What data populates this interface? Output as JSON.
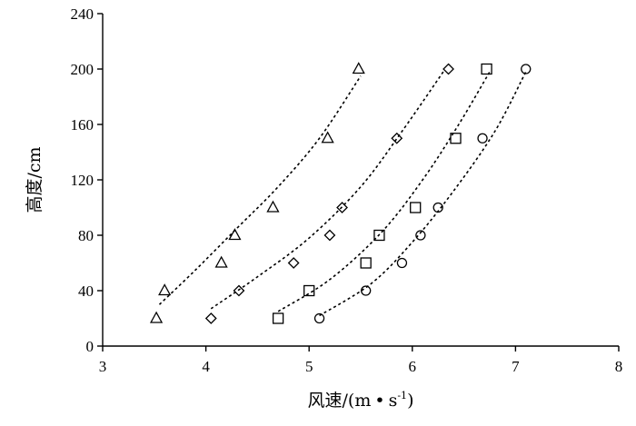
{
  "chart_data": {
    "type": "scatter",
    "xlabel_main": "风速/(m",
    "xlabel_dot": "•",
    "xlabel_s": "s",
    "xlabel_exp": "-1",
    "xlabel_close": ")",
    "ylabel": "高度/cm",
    "xlim": [
      3,
      8
    ],
    "ylim": [
      0,
      240
    ],
    "xticks": [
      3,
      4,
      5,
      6,
      7,
      8
    ],
    "yticks": [
      0,
      40,
      80,
      120,
      160,
      200,
      240
    ],
    "grid": false,
    "series": [
      {
        "marker": "triangle",
        "points": [
          [
            3.52,
            20
          ],
          [
            3.6,
            40
          ],
          [
            4.15,
            60
          ],
          [
            4.28,
            80
          ],
          [
            4.65,
            100
          ],
          [
            5.18,
            150
          ],
          [
            5.48,
            200
          ]
        ]
      },
      {
        "marker": "diamond",
        "points": [
          [
            4.05,
            20
          ],
          [
            4.32,
            40
          ],
          [
            4.85,
            60
          ],
          [
            5.2,
            80
          ],
          [
            5.32,
            100
          ],
          [
            5.85,
            150
          ],
          [
            6.35,
            200
          ]
        ]
      },
      {
        "marker": "square",
        "points": [
          [
            4.7,
            20
          ],
          [
            5.0,
            40
          ],
          [
            5.55,
            60
          ],
          [
            5.68,
            80
          ],
          [
            6.03,
            100
          ],
          [
            6.42,
            150
          ],
          [
            6.72,
            200
          ]
        ]
      },
      {
        "marker": "circle",
        "points": [
          [
            5.1,
            20
          ],
          [
            5.55,
            40
          ],
          [
            5.9,
            60
          ],
          [
            6.08,
            80
          ],
          [
            6.25,
            100
          ],
          [
            6.68,
            150
          ],
          [
            7.1,
            200
          ]
        ]
      }
    ],
    "trendlines": [
      [
        [
          3.55,
          30
        ],
        [
          3.9,
          55
        ],
        [
          4.3,
          85
        ],
        [
          4.7,
          115
        ],
        [
          5.1,
          150
        ],
        [
          5.5,
          195
        ]
      ],
      [
        [
          4.05,
          27
        ],
        [
          4.5,
          50
        ],
        [
          5.0,
          78
        ],
        [
          5.5,
          115
        ],
        [
          5.9,
          155
        ],
        [
          6.3,
          198
        ]
      ],
      [
        [
          4.7,
          25
        ],
        [
          5.2,
          48
        ],
        [
          5.7,
          82
        ],
        [
          6.1,
          120
        ],
        [
          6.45,
          160
        ],
        [
          6.75,
          198
        ]
      ],
      [
        [
          5.1,
          22
        ],
        [
          5.6,
          45
        ],
        [
          6.0,
          75
        ],
        [
          6.4,
          112
        ],
        [
          6.8,
          155
        ],
        [
          7.1,
          198
        ]
      ]
    ]
  }
}
